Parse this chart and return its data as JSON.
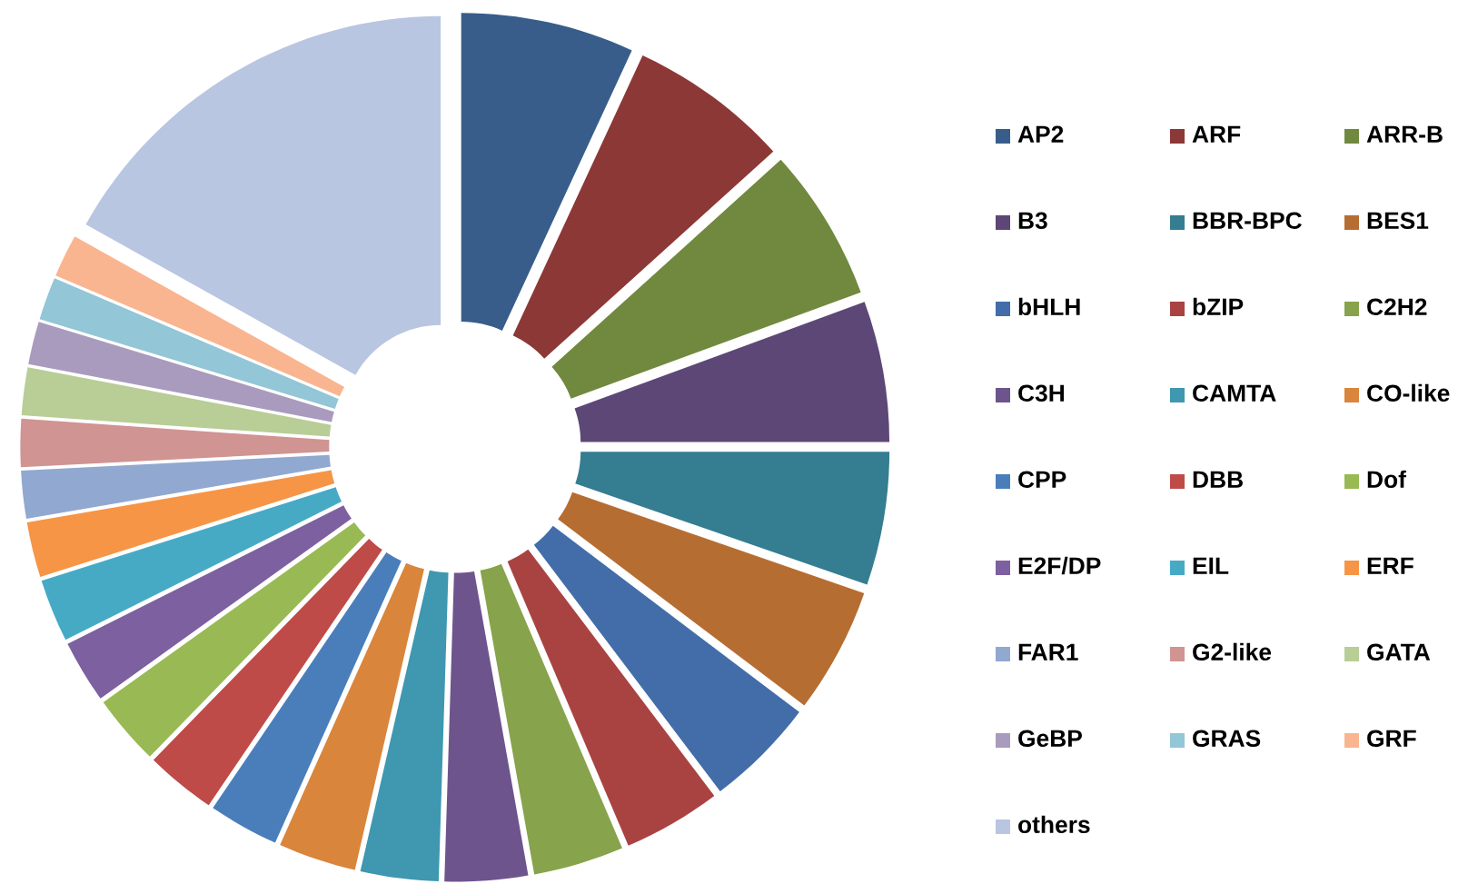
{
  "chart_data": {
    "type": "donut",
    "categories": [
      "AP2",
      "ARF",
      "ARR-B",
      "B3",
      "BBR-BPC",
      "BES1",
      "bHLH",
      "bZIP",
      "C2H2",
      "C3H",
      "CAMTA",
      "CO-like",
      "CPP",
      "DBB",
      "Dof",
      "E2F/DP",
      "EIL",
      "ERF",
      "FAR1",
      "G2-like",
      "GATA",
      "GeBP",
      "GRAS",
      "GRF",
      "others"
    ],
    "values": [
      6.9,
      6.4,
      6.1,
      5.6,
      5.3,
      5.0,
      4.4,
      3.9,
      3.6,
      3.3,
      3.1,
      3.1,
      2.8,
      2.8,
      2.8,
      2.5,
      2.5,
      2.2,
      1.9,
      1.9,
      1.9,
      1.7,
      1.7,
      1.7,
      16.9
    ],
    "colors": [
      "#385d8a",
      "#8c3836",
      "#71893f",
      "#5c4776",
      "#357d91",
      "#b66d31",
      "#426da9",
      "#a94342",
      "#87a34c",
      "#6e548d",
      "#3f97b0",
      "#d9853b",
      "#4a7ebb",
      "#be4b48",
      "#98b954",
      "#7d60a0",
      "#46aac5",
      "#f69546",
      "#91a8d0",
      "#d09493",
      "#b9cd96",
      "#a99bbd",
      "#93c6d6",
      "#f9b590",
      "#b9c6e1"
    ],
    "legend": "right"
  }
}
